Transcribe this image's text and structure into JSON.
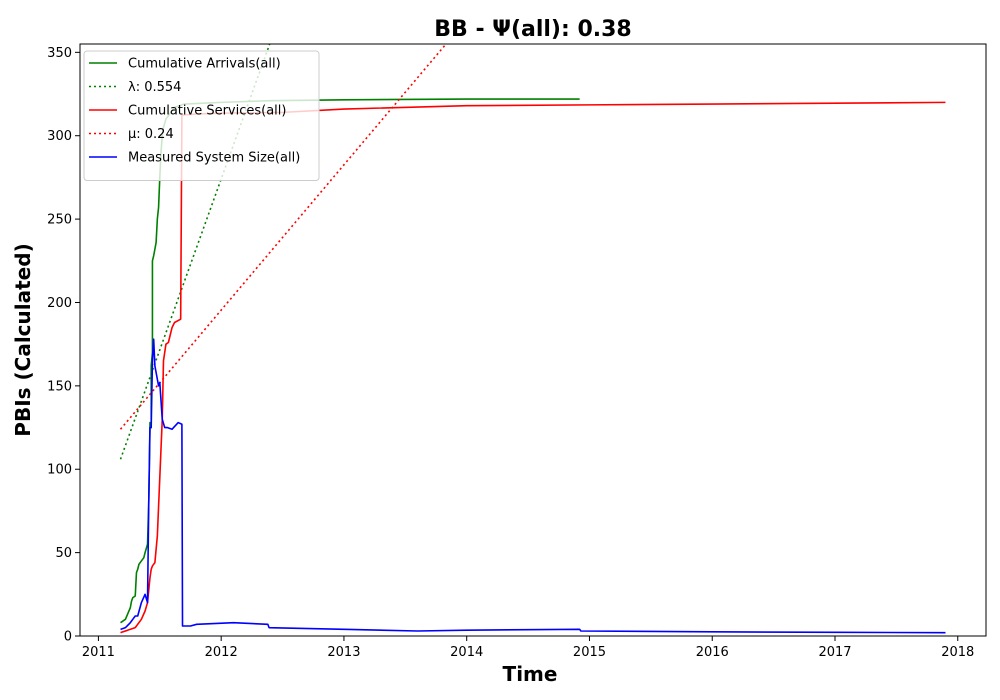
{
  "chart_data": {
    "type": "line",
    "title": "BB -  Ψ(all): 0.38",
    "xlabel": "Time",
    "ylabel": "PBIs (Calculated)",
    "xlim": [
      2010.85,
      2018.23
    ],
    "ylim": [
      0,
      355
    ],
    "xticks": [
      2011,
      2012,
      2013,
      2014,
      2015,
      2016,
      2017,
      2018
    ],
    "xtick_labels": [
      "2011",
      "2012",
      "2013",
      "2014",
      "2015",
      "2016",
      "2017",
      "2018"
    ],
    "yticks": [
      0,
      50,
      100,
      150,
      200,
      250,
      300,
      350
    ],
    "ytick_labels": [
      "0",
      "50",
      "100",
      "150",
      "200",
      "250",
      "300",
      "350"
    ],
    "grid": false,
    "legend_position": "top-left",
    "series": [
      {
        "name": "Cumulative Arrivals(all)",
        "color": "#008000",
        "style": "solid",
        "x": [
          2011.18,
          2011.22,
          2011.26,
          2011.27,
          2011.28,
          2011.3,
          2011.31,
          2011.32,
          2011.33,
          2011.35,
          2011.36,
          2011.37,
          2011.38,
          2011.4,
          2011.41,
          2011.42,
          2011.43,
          2011.43,
          2011.44,
          2011.44,
          2011.45,
          2011.46,
          2011.47,
          2011.48,
          2011.49,
          2011.5,
          2011.51,
          2011.52,
          2011.53,
          2011.55,
          2011.58,
          2011.62,
          2011.7,
          2012.0,
          2012.4,
          2013.0,
          2014.0,
          2014.92
        ],
        "y": [
          8,
          10,
          17,
          21,
          23,
          24,
          38,
          40,
          43,
          45,
          46,
          47,
          50,
          55,
          80,
          128,
          125,
          162,
          170,
          225,
          228,
          232,
          236,
          250,
          257,
          275,
          290,
          300,
          305,
          310,
          313,
          317,
          319,
          320,
          321,
          321.5,
          322,
          322
        ]
      },
      {
        "name": "λ: 0.554",
        "color": "#008000",
        "style": "dotted",
        "x": [
          2011.18,
          2012.4
        ],
        "y": [
          106,
          356
        ]
      },
      {
        "name": "Cumulative Services(all)",
        "color": "#ff0000",
        "style": "solid",
        "x": [
          2011.18,
          2011.3,
          2011.35,
          2011.38,
          2011.4,
          2011.42,
          2011.43,
          2011.44,
          2011.46,
          2011.48,
          2011.5,
          2011.52,
          2011.53,
          2011.55,
          2011.57,
          2011.6,
          2011.62,
          2011.67,
          2011.68,
          2011.7,
          2011.8,
          2012.0,
          2012.5,
          2013.0,
          2014.0,
          2015.0,
          2016.0,
          2017.0,
          2017.9
        ],
        "y": [
          2,
          5,
          10,
          15,
          20,
          35,
          40,
          42,
          44,
          60,
          95,
          130,
          165,
          175,
          176,
          185,
          188,
          190,
          312,
          312.5,
          313,
          313.5,
          314,
          316,
          318,
          318.5,
          319,
          319.5,
          320
        ]
      },
      {
        "name": "μ: 0.24",
        "color": "#ff0000",
        "style": "dotted",
        "x": [
          2011.18,
          2013.82
        ],
        "y": [
          124,
          354
        ]
      },
      {
        "name": "Measured System Size(all)",
        "color": "#0000ff",
        "style": "solid",
        "x": [
          2011.18,
          2011.22,
          2011.26,
          2011.28,
          2011.3,
          2011.32,
          2011.35,
          2011.38,
          2011.4,
          2011.41,
          2011.42,
          2011.43,
          2011.44,
          2011.45,
          2011.46,
          2011.47,
          2011.49,
          2011.5,
          2011.52,
          2011.54,
          2011.56,
          2011.6,
          2011.65,
          2011.68,
          2011.685,
          2011.75,
          2011.8,
          2012.1,
          2012.38,
          2012.39,
          2013.0,
          2013.6,
          2014.0,
          2014.92,
          2014.93,
          2016.0,
          2017.0,
          2017.9
        ],
        "y": [
          4,
          5,
          8,
          10,
          12,
          12,
          20,
          25,
          20,
          80,
          125,
          125,
          165,
          178,
          162,
          158,
          150,
          152,
          130,
          125,
          125,
          124,
          128,
          127,
          6,
          6,
          7,
          8,
          7,
          5,
          4,
          3,
          3.5,
          4,
          3,
          2.5,
          2.2,
          2
        ]
      }
    ]
  }
}
